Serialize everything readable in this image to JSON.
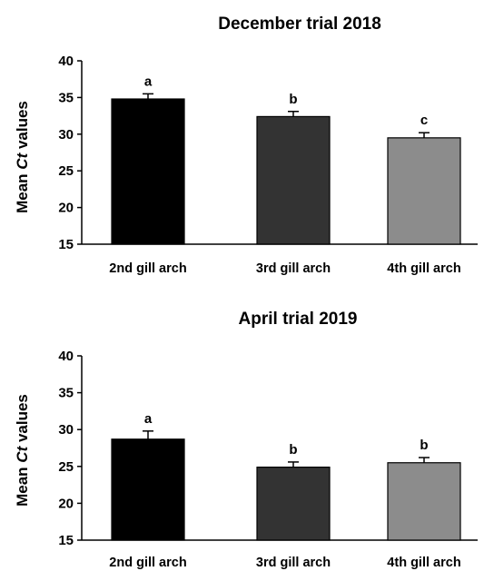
{
  "chart_data": [
    {
      "type": "bar",
      "title": "December trial 2018",
      "ylabel_prefix": "Mean ",
      "ylabel_italic": "Ct",
      "ylabel_suffix": " values",
      "ylim": [
        15,
        40
      ],
      "yticks": [
        "15",
        "20",
        "25",
        "30",
        "35",
        "40"
      ],
      "grid": false,
      "categories": [
        "2nd gill arch",
        "3rd gill arch",
        "4th gill arch"
      ],
      "values": [
        34.8,
        32.4,
        29.5
      ],
      "error": [
        0.7,
        0.7,
        0.7
      ],
      "significance": [
        "a",
        "b",
        "c"
      ],
      "colors": [
        "#000000",
        "#333333",
        "#8c8c8c"
      ]
    },
    {
      "type": "bar",
      "title": "April trial 2019",
      "ylabel_prefix": "Mean ",
      "ylabel_italic": "Ct",
      "ylabel_suffix": " values",
      "ylim": [
        15,
        40
      ],
      "yticks": [
        "15",
        "20",
        "25",
        "30",
        "35",
        "40"
      ],
      "grid": false,
      "categories": [
        "2nd gill arch",
        "3rd gill arch",
        "4th gill arch"
      ],
      "values": [
        28.7,
        24.9,
        25.5
      ],
      "error": [
        1.1,
        0.7,
        0.7
      ],
      "significance": [
        "a",
        "b",
        "b"
      ],
      "colors": [
        "#000000",
        "#333333",
        "#8c8c8c"
      ]
    }
  ]
}
